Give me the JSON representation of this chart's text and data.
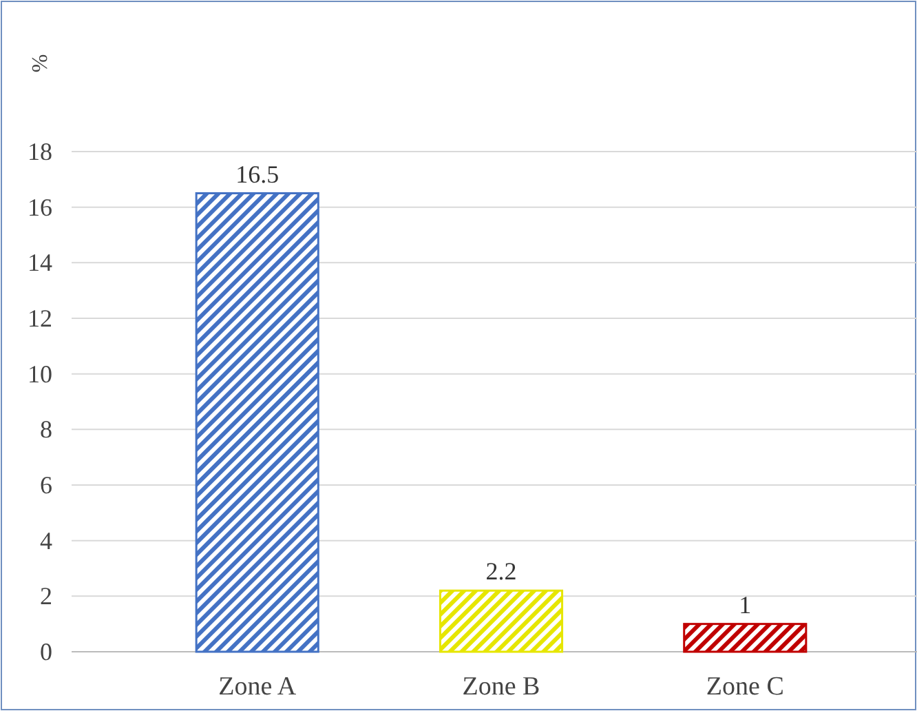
{
  "chart_data": {
    "type": "bar",
    "ylabel": "%",
    "categories": [
      "Zone A",
      "Zone B",
      "Zone C"
    ],
    "values": [
      16.5,
      2.2,
      1
    ],
    "colors": [
      "#4472c4",
      "#e6e600",
      "#c00000"
    ],
    "ylim": [
      0,
      18
    ],
    "yticks": [
      0,
      2,
      4,
      6,
      8,
      10,
      12,
      14,
      16,
      18
    ],
    "grid": "y",
    "data_labels": true
  }
}
